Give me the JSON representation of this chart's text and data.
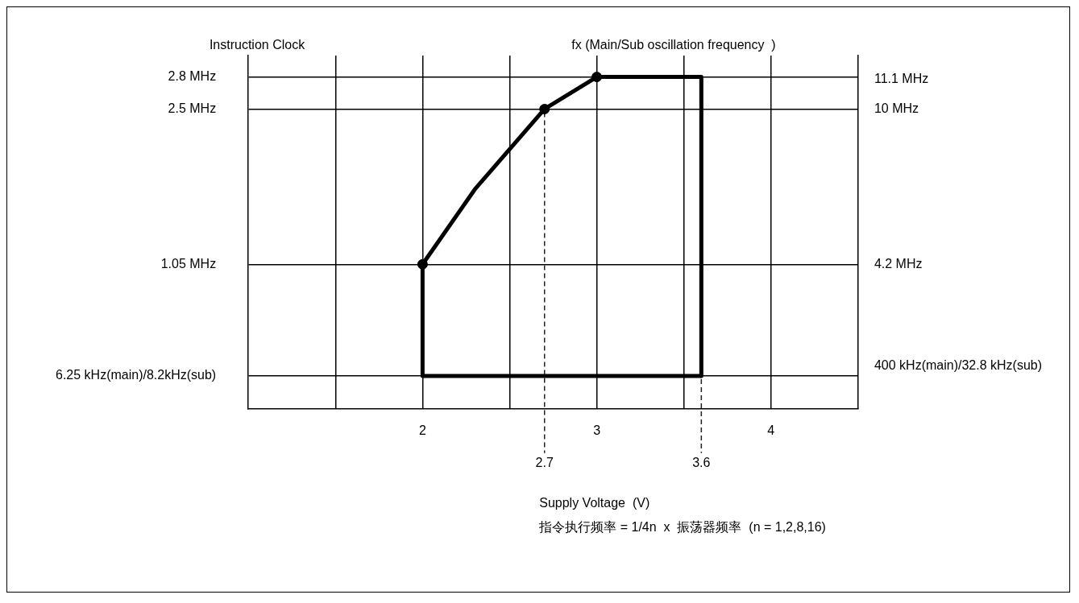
{
  "chart_data": {
    "type": "line",
    "xlabel": "Supply Voltage  (V)",
    "ylabel": "Instruction Clock",
    "y2label": "fx (Main/Sub oscillation frequency  )",
    "annotations": [
      "指令执行频率 = 1/4n  x  振荡器频率  (n = 1,2,8,16)"
    ],
    "xlim": [
      1,
      4.5
    ],
    "xticks": [
      {
        "value": 1.5,
        "label": null
      },
      2,
      {
        "value": 2.5,
        "label": null
      },
      3,
      {
        "value": 3.5,
        "label": null
      },
      4
    ],
    "ylim": [
      -0.3,
      3.0
    ],
    "yticks": [
      {
        "value": 0.00625,
        "label": "6.25 kHz(main)/8.2kHz(sub)"
      },
      {
        "value": 1.05,
        "label": "1.05 MHz"
      },
      {
        "value": 2.5,
        "label": "2.5 MHz"
      },
      {
        "value": 2.8,
        "label": "2.8 MHz"
      }
    ],
    "y2lim": [
      -1.2,
      12
    ],
    "y2ticks": [
      {
        "value": 0.4,
        "label": "400 kHz(main)/32.8 kHz(sub)"
      },
      {
        "value": 4.2,
        "label": "4.2 MHz"
      },
      {
        "value": 10,
        "label": "10 MHz"
      },
      {
        "value": 11.1,
        "label": "11.1 MHz"
      }
    ],
    "grid": true,
    "legend": false,
    "series": [
      {
        "color": "#000000",
        "marker": "none",
        "line_style": "solid",
        "x": [
          2,
          2.3,
          2.7,
          3,
          3.6,
          3.6
        ],
        "values": [
          1.05,
          1.75,
          2.5,
          2.8,
          2.8,
          0.00625
        ]
      },
      {
        "type": "line",
        "color": "#000000",
        "marker": "none",
        "line_style": "solid",
        "x": [
          2,
          2,
          3.6
        ],
        "values": [
          1.05,
          0.00625,
          0.00625
        ]
      },
      {
        "type": "scatter",
        "color": "#000000",
        "marker": "circle",
        "x": [
          2,
          2.7,
          3
        ],
        "values": [
          1.05,
          2.5,
          2.8
        ]
      }
    ],
    "ref_lines": [
      {
        "axis": "x",
        "value": 2.7,
        "label": "2.7",
        "line_style": "dashed",
        "color": "#222222"
      },
      {
        "axis": "x",
        "value": 3.6,
        "label": "3.6",
        "line_style": "dashed",
        "color": "#222222"
      }
    ]
  }
}
